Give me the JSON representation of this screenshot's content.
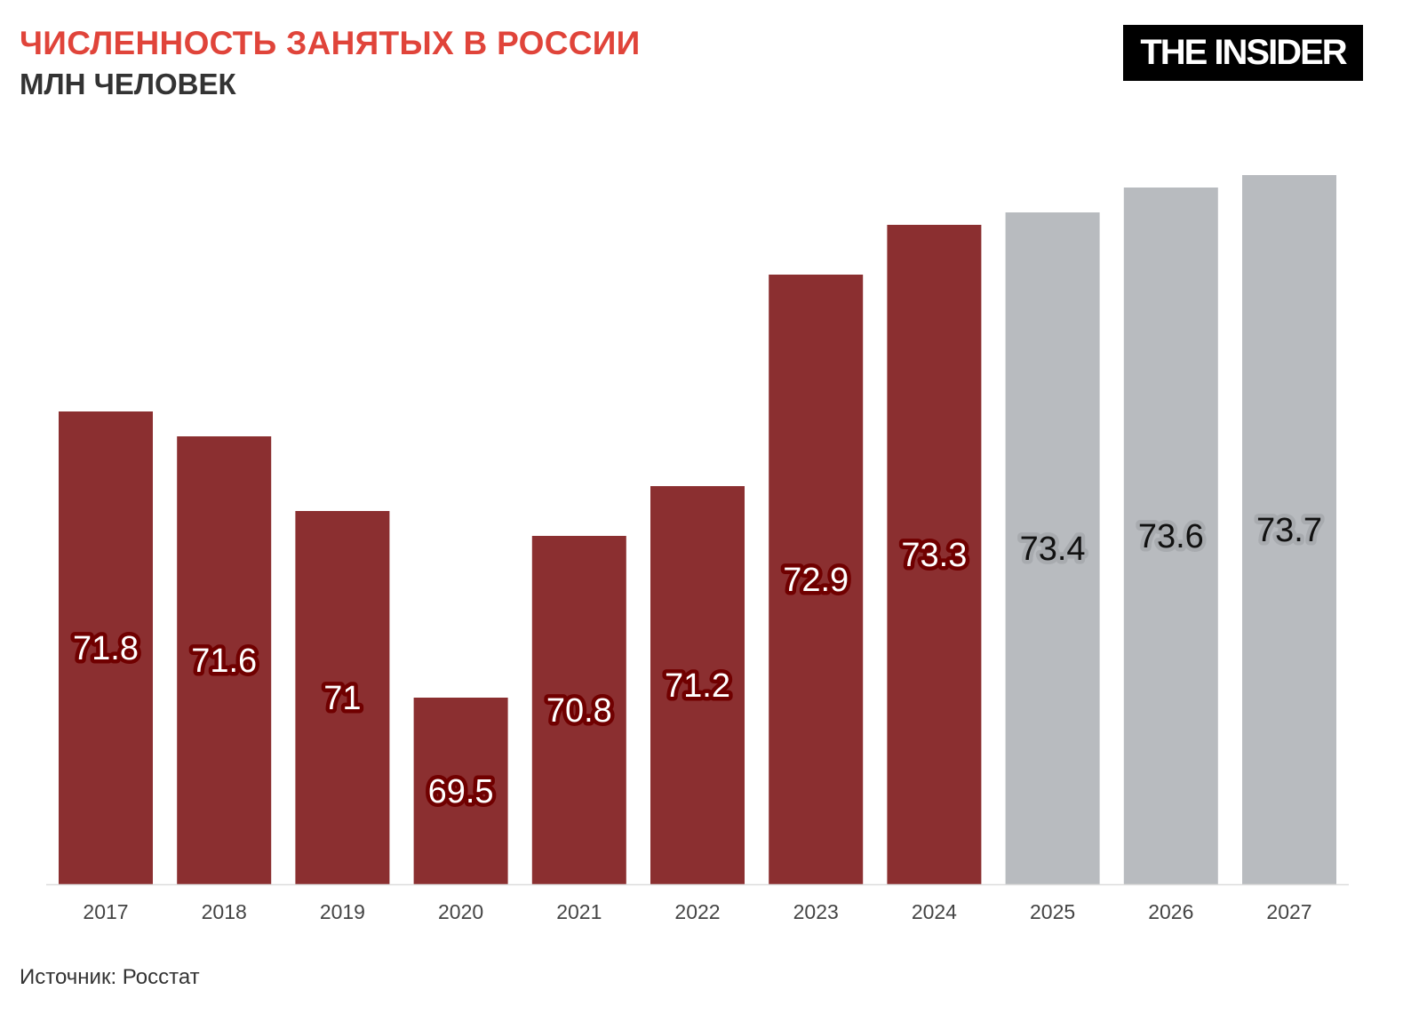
{
  "header": {
    "title": "ЧИСЛЕННОСТЬ ЗАНЯТЫХ В РОССИИ",
    "subtitle": "МЛН ЧЕЛОВЕК",
    "logo": "THE INSIDER"
  },
  "footer": {
    "source": "Источник: Росстат"
  },
  "colors": {
    "actual": "#8b2f30",
    "actual_halo": "#700000",
    "forecast": "#b8bbbf",
    "forecast_halo": "#a8abaf",
    "title": "#e0443a"
  },
  "chart_data": {
    "type": "bar",
    "title": "ЧИСЛЕННОСТЬ ЗАНЯТЫХ В РОССИИ",
    "subtitle": "МЛН ЧЕЛОВЕК",
    "categories": [
      "2017",
      "2018",
      "2019",
      "2020",
      "2021",
      "2022",
      "2023",
      "2024",
      "2025",
      "2026",
      "2027"
    ],
    "values": [
      71.8,
      71.6,
      71,
      69.5,
      70.8,
      71.2,
      72.9,
      73.3,
      73.4,
      73.6,
      73.7
    ],
    "labels": [
      "71.8",
      "71.6",
      "71",
      "69.5",
      "70.8",
      "71.2",
      "72.9",
      "73.3",
      "73.4",
      "73.6",
      "73.7"
    ],
    "forecast": [
      false,
      false,
      false,
      false,
      false,
      false,
      false,
      false,
      true,
      true,
      true
    ],
    "ylim": [
      68,
      74
    ],
    "grid": false,
    "xlabel": "",
    "ylabel": ""
  }
}
